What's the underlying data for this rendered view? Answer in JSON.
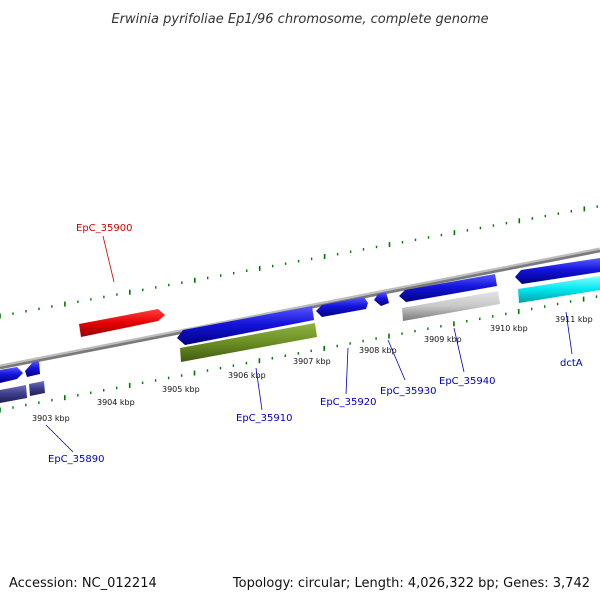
{
  "title": "Erwinia pyrifoliae Ep1/96 chromosome, complete genome",
  "footer": {
    "accession": "Accession: NC_012214",
    "summary": "Topology: circular; Length: 4,026,322 bp; Genes: 3,742"
  },
  "kbp_labels": [
    "3903 kbp",
    "3904 kbp",
    "3905 kbp",
    "3906 kbp",
    "3907 kbp",
    "3908 kbp",
    "3909 kbp",
    "3910 kbp",
    "3911 kbp"
  ],
  "gene_labels": {
    "top": [
      "EpC_35900"
    ],
    "bottom": [
      "EpC_35890",
      "EpC_35910",
      "EpC_35920",
      "EpC_35930",
      "EpC_35940",
      "dctA"
    ]
  },
  "colors": {
    "forward_gene": "#1414dc",
    "reverse_gene_red": "#e60000",
    "olive_gene": "#6b8e23",
    "gray_gene": "#c8c8c8",
    "cyan_gene": "#00e5ee",
    "slate_gene": "#3c3c8c",
    "label_blue": "#0000c0",
    "label_red": "#d00000",
    "tick_green": "#007700",
    "backbone": "#808080"
  }
}
